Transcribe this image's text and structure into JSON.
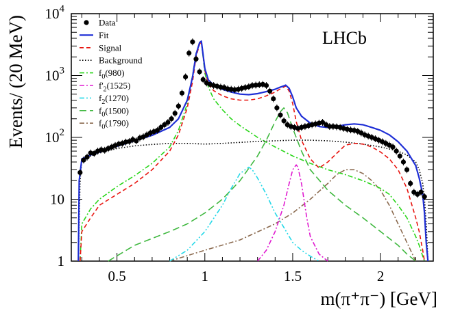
{
  "chart_data": {
    "type": "line",
    "title": "",
    "watermark": "LHCb",
    "xlabel": "m(π⁺π⁻) [GeV]",
    "ylabel": "Events/ (20 MeV)",
    "xlim": [
      0.24,
      2.3
    ],
    "ylim": [
      1,
      10000
    ],
    "yscale": "log",
    "x_ticks": [
      {
        "value": 0.5,
        "label": "0.5"
      },
      {
        "value": 1.0,
        "label": "1"
      },
      {
        "value": 1.5,
        "label": "1.5"
      },
      {
        "value": 2.0,
        "label": "2"
      }
    ],
    "y_ticks": [
      {
        "value": 1,
        "label": "1"
      },
      {
        "value": 10,
        "label": "10"
      },
      {
        "value": 100,
        "label": "10",
        "exp": "2"
      },
      {
        "value": 1000,
        "label": "10",
        "exp": "3"
      },
      {
        "value": 10000,
        "label": "10",
        "exp": "4"
      }
    ],
    "legend": [
      {
        "key": "data",
        "label": "Data",
        "sub": "",
        "suffix": "",
        "color": "#000000",
        "style": "marker"
      },
      {
        "key": "fit",
        "label": "Fit",
        "sub": "",
        "suffix": "",
        "color": "#1f2fd6",
        "style": "solid"
      },
      {
        "key": "signal",
        "label": "Signal",
        "sub": "",
        "suffix": "",
        "color": "#e8140f",
        "style": "dashed"
      },
      {
        "key": "background",
        "label": "Background",
        "sub": "",
        "suffix": "",
        "color": "#000000",
        "style": "dotted"
      },
      {
        "key": "f0_980",
        "label": "f",
        "sub": "0",
        "suffix": "(980)",
        "color": "#2ad61a",
        "style": "dashdot"
      },
      {
        "key": "f2p_1525",
        "label": "f'",
        "sub": "2",
        "suffix": "(1525)",
        "color": "#e01ad0",
        "style": "dashdot"
      },
      {
        "key": "f2_1270",
        "label": "f",
        "sub": "2",
        "suffix": "(1270)",
        "color": "#22d8e8",
        "style": "dashdotdot"
      },
      {
        "key": "f0_1500",
        "label": "f",
        "sub": "0",
        "suffix": "(1500)",
        "color": "#3fb83f",
        "style": "longdash"
      },
      {
        "key": "f0_1790",
        "label": "f",
        "sub": "0",
        "suffix": "(1790)",
        "color": "#8b6a4f",
        "style": "dashdot"
      }
    ],
    "series": [
      {
        "name": "Data",
        "key": "data",
        "type": "scatter",
        "x": [
          0.29,
          0.31,
          0.33,
          0.35,
          0.37,
          0.39,
          0.41,
          0.43,
          0.45,
          0.47,
          0.49,
          0.51,
          0.53,
          0.55,
          0.57,
          0.59,
          0.61,
          0.63,
          0.65,
          0.67,
          0.69,
          0.71,
          0.73,
          0.75,
          0.77,
          0.79,
          0.81,
          0.83,
          0.85,
          0.87,
          0.89,
          0.91,
          0.93,
          0.95,
          0.97,
          0.99,
          1.01,
          1.03,
          1.05,
          1.07,
          1.09,
          1.11,
          1.13,
          1.15,
          1.17,
          1.19,
          1.21,
          1.23,
          1.25,
          1.27,
          1.29,
          1.31,
          1.33,
          1.35,
          1.37,
          1.39,
          1.41,
          1.43,
          1.45,
          1.47,
          1.49,
          1.51,
          1.53,
          1.55,
          1.57,
          1.59,
          1.61,
          1.63,
          1.65,
          1.67,
          1.69,
          1.71,
          1.73,
          1.75,
          1.77,
          1.79,
          1.81,
          1.83,
          1.85,
          1.87,
          1.89,
          1.91,
          1.93,
          1.95,
          1.97,
          1.99,
          2.01,
          2.03,
          2.05,
          2.07,
          2.09,
          2.11,
          2.13,
          2.15,
          2.17,
          2.19,
          2.21,
          2.23,
          2.25
        ],
        "y": [
          27,
          43,
          48,
          56,
          55,
          60,
          63,
          62,
          66,
          70,
          74,
          78,
          80,
          84,
          86,
          92,
          88,
          98,
          102,
          110,
          118,
          124,
          130,
          145,
          160,
          175,
          200,
          245,
          320,
          520,
          950,
          2300,
          3500,
          1850,
          1150,
          860,
          760,
          720,
          690,
          670,
          650,
          640,
          610,
          600,
          590,
          600,
          620,
          640,
          660,
          690,
          700,
          710,
          720,
          690,
          560,
          420,
          300,
          230,
          185,
          160,
          150,
          145,
          140,
          145,
          150,
          155,
          160,
          165,
          170,
          175,
          160,
          150,
          150,
          148,
          145,
          140,
          135,
          132,
          130,
          125,
          118,
          110,
          105,
          100,
          95,
          90,
          85,
          80,
          75,
          70,
          60,
          50,
          40,
          30,
          18,
          13,
          12,
          13,
          11
        ]
      },
      {
        "name": "Fit",
        "key": "fit",
        "type": "line",
        "x": [
          0.28,
          0.285,
          0.3,
          0.35,
          0.4,
          0.5,
          0.6,
          0.7,
          0.8,
          0.85,
          0.9,
          0.93,
          0.95,
          0.97,
          0.98,
          0.99,
          1.0,
          1.02,
          1.05,
          1.1,
          1.15,
          1.2,
          1.25,
          1.3,
          1.35,
          1.4,
          1.43,
          1.45,
          1.46,
          1.48,
          1.5,
          1.52,
          1.55,
          1.6,
          1.65,
          1.7,
          1.75,
          1.8,
          1.85,
          1.9,
          1.95,
          2.0,
          2.05,
          2.1,
          2.15,
          2.2,
          2.22,
          2.24,
          2.25,
          2.26,
          2.27
        ],
        "y": [
          1,
          20,
          45,
          52,
          58,
          72,
          88,
          108,
          145,
          200,
          400,
          950,
          2200,
          3400,
          3600,
          2200,
          1300,
          850,
          700,
          600,
          540,
          500,
          490,
          510,
          550,
          600,
          650,
          680,
          700,
          620,
          450,
          300,
          220,
          170,
          150,
          145,
          150,
          160,
          165,
          160,
          145,
          130,
          110,
          85,
          60,
          35,
          22,
          12,
          6,
          2,
          1
        ]
      },
      {
        "name": "Signal",
        "key": "signal",
        "type": "line",
        "x": [
          0.29,
          0.3,
          0.35,
          0.4,
          0.5,
          0.6,
          0.7,
          0.8,
          0.85,
          0.9,
          0.93,
          0.95,
          0.97,
          0.98,
          0.99,
          1.0,
          1.02,
          1.05,
          1.1,
          1.15,
          1.2,
          1.25,
          1.3,
          1.35,
          1.4,
          1.43,
          1.45,
          1.46,
          1.48,
          1.5,
          1.52,
          1.55,
          1.6,
          1.65,
          1.7,
          1.75,
          1.8,
          1.85,
          1.9,
          1.95,
          2.0,
          2.05,
          2.1,
          2.15,
          2.2,
          2.22,
          2.24,
          2.25
        ],
        "y": [
          1,
          3,
          5,
          8,
          12,
          18,
          30,
          60,
          110,
          300,
          800,
          2000,
          3200,
          3500,
          2100,
          1200,
          750,
          570,
          470,
          420,
          400,
          400,
          420,
          470,
          540,
          610,
          650,
          680,
          560,
          350,
          180,
          90,
          45,
          32,
          40,
          55,
          75,
          80,
          78,
          70,
          58,
          45,
          30,
          15,
          5,
          3,
          1.5,
          1
        ]
      },
      {
        "name": "Background",
        "key": "background",
        "type": "line",
        "x": [
          0.28,
          0.29,
          0.3,
          0.35,
          0.4,
          0.5,
          0.6,
          0.7,
          0.8,
          0.9,
          1.0,
          1.1,
          1.2,
          1.3,
          1.4,
          1.5,
          1.6,
          1.7,
          1.8,
          1.9,
          2.0,
          2.1,
          2.15,
          2.2,
          2.22,
          2.24,
          2.25,
          2.26,
          2.27
        ],
        "y": [
          1,
          20,
          42,
          50,
          56,
          66,
          73,
          77,
          80,
          80,
          78,
          80,
          83,
          86,
          88,
          90,
          90,
          88,
          84,
          78,
          70,
          60,
          52,
          40,
          30,
          18,
          10,
          4,
          1
        ]
      },
      {
        "name": "f0(980)",
        "key": "f0_980",
        "type": "line",
        "x": [
          0.29,
          0.3,
          0.35,
          0.4,
          0.5,
          0.6,
          0.7,
          0.8,
          0.85,
          0.9,
          0.93,
          0.95,
          0.97,
          0.98,
          0.99,
          1.0,
          1.02,
          1.05,
          1.1,
          1.15,
          1.2,
          1.3,
          1.4,
          1.5,
          1.6,
          1.7,
          1.8,
          1.9,
          2.0,
          2.05,
          2.1,
          2.15,
          2.2,
          2.22,
          2.24,
          2.25
        ],
        "y": [
          1,
          4,
          7,
          10,
          16,
          24,
          38,
          70,
          130,
          350,
          1000,
          2300,
          3300,
          3500,
          2000,
          1100,
          650,
          420,
          280,
          200,
          155,
          100,
          70,
          50,
          38,
          30,
          25,
          20,
          15,
          12,
          8,
          5,
          2.5,
          1.8,
          1.2,
          1
        ]
      },
      {
        "name": "f'2(1525)",
        "key": "f2p_1525",
        "type": "line",
        "x": [
          1.3,
          1.35,
          1.4,
          1.45,
          1.48,
          1.5,
          1.52,
          1.53,
          1.55,
          1.58,
          1.6,
          1.65,
          1.7
        ],
        "y": [
          1,
          1.5,
          3,
          8,
          18,
          30,
          36,
          33,
          18,
          5,
          2.5,
          1.3,
          1
        ]
      },
      {
        "name": "f2(1270)",
        "key": "f2_1270",
        "type": "line",
        "x": [
          0.8,
          0.9,
          1.0,
          1.1,
          1.15,
          1.2,
          1.25,
          1.27,
          1.3,
          1.35,
          1.4,
          1.45,
          1.5,
          1.55,
          1.6,
          1.65
        ],
        "y": [
          1,
          1.5,
          3,
          8,
          15,
          26,
          33,
          30,
          22,
          12,
          6,
          3.5,
          2,
          1.5,
          1.2,
          1
        ]
      },
      {
        "name": "f0(1500)",
        "key": "f0_1500",
        "type": "line",
        "x": [
          0.45,
          0.6,
          0.8,
          0.9,
          1.0,
          1.1,
          1.2,
          1.3,
          1.35,
          1.4,
          1.43,
          1.45,
          1.47,
          1.5,
          1.55,
          1.6,
          1.7,
          1.8,
          1.9,
          2.0,
          2.1,
          2.15,
          2.2
        ],
        "y": [
          1,
          1.8,
          3,
          4,
          6,
          10,
          20,
          50,
          90,
          180,
          260,
          300,
          250,
          140,
          60,
          30,
          14,
          8,
          5,
          3,
          1.8,
          1.3,
          1
        ]
      },
      {
        "name": "f0(1790)",
        "key": "f0_1790",
        "type": "line",
        "x": [
          0.8,
          1.0,
          1.2,
          1.4,
          1.5,
          1.6,
          1.7,
          1.75,
          1.8,
          1.85,
          1.9,
          1.95,
          2.0,
          2.05,
          2.1,
          2.15,
          2.2
        ],
        "y": [
          1,
          1.5,
          2.2,
          4,
          6,
          10,
          18,
          25,
          30,
          30,
          26,
          20,
          14,
          8,
          4,
          2,
          1
        ]
      }
    ]
  }
}
